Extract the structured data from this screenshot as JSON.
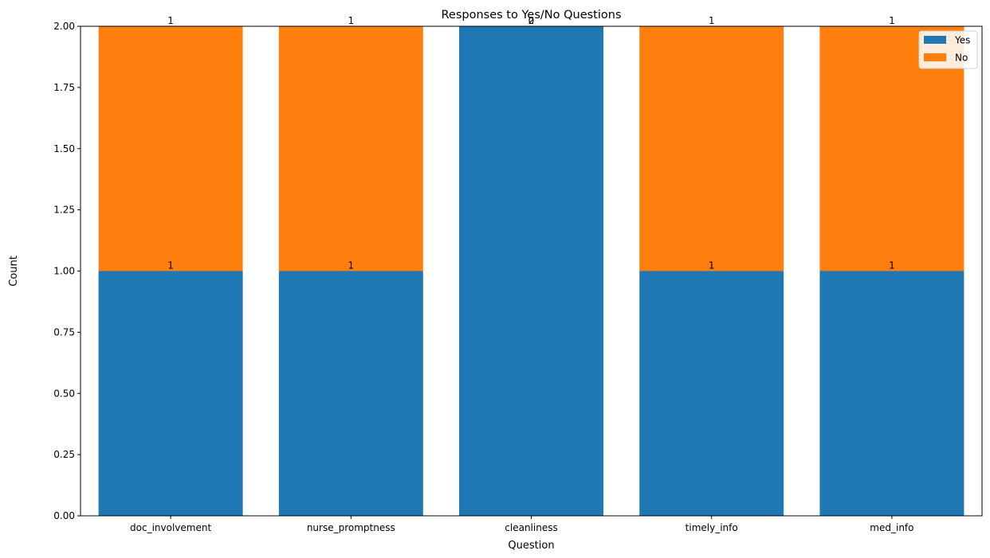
{
  "chart_data": {
    "type": "bar",
    "stacked": true,
    "title": "Responses to Yes/No Questions",
    "xlabel": "Question",
    "ylabel": "Count",
    "ylim": [
      0,
      2
    ],
    "yticks": [
      "0.00",
      "0.25",
      "0.50",
      "0.75",
      "1.00",
      "1.25",
      "1.50",
      "1.75",
      "2.00"
    ],
    "categories": [
      "doc_involvement",
      "nurse_promptness",
      "cleanliness",
      "timely_info",
      "med_info"
    ],
    "series": [
      {
        "name": "Yes",
        "color": "#1f77b4",
        "values": [
          1,
          1,
          2,
          1,
          1
        ]
      },
      {
        "name": "No",
        "color": "#ff7f0e",
        "values": [
          1,
          1,
          0,
          1,
          1
        ]
      }
    ],
    "data_labels": {
      "Yes": [
        "1",
        "1",
        "2",
        "1",
        "1"
      ],
      "No": [
        "1",
        "1",
        "0",
        "1",
        "1"
      ]
    },
    "legend": {
      "position": "top-right"
    },
    "grid": false
  }
}
